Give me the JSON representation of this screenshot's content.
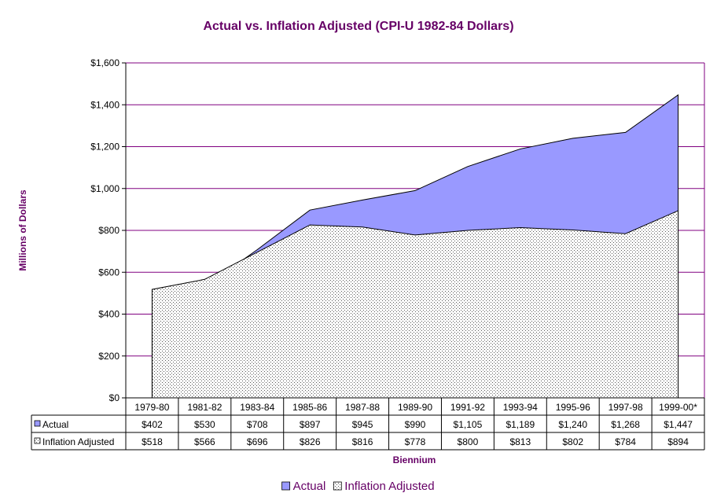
{
  "chart_data": {
    "type": "area",
    "title": "Actual vs. Inflation Adjusted (CPI-U 1982-84 Dollars)",
    "xlabel": "Biennium",
    "ylabel": "Millions of Dollars",
    "ylim": [
      0,
      1600
    ],
    "y_ticks": [
      "$0",
      "$200",
      "$400",
      "$600",
      "$800",
      "$1,000",
      "$1,200",
      "$1,400",
      "$1,600"
    ],
    "categories": [
      "1979-80",
      "1981-82",
      "1983-84",
      "1985-86",
      "1987-88",
      "1989-90",
      "1991-92",
      "1993-94",
      "1995-96",
      "1997-98",
      "1999-00*"
    ],
    "series": [
      {
        "name": "Actual",
        "values": [
          402,
          530,
          708,
          897,
          945,
          990,
          1105,
          1189,
          1240,
          1268,
          1447
        ],
        "labels": [
          "$402",
          "$530",
          "$708",
          "$897",
          "$945",
          "$990",
          "$1,105",
          "$1,189",
          "$1,240",
          "$1,268",
          "$1,447"
        ],
        "color": "#9999ff"
      },
      {
        "name": "Inflation Adjusted",
        "values": [
          518,
          566,
          696,
          826,
          816,
          778,
          800,
          813,
          802,
          784,
          894
        ],
        "labels": [
          "$518",
          "$566",
          "$696",
          "$826",
          "$816",
          "$778",
          "$800",
          "$813",
          "$802",
          "$784",
          "$894"
        ],
        "color": "#ffffff"
      }
    ],
    "grid": true,
    "data_table": true,
    "legend_position": "bottom",
    "colors": {
      "text": "#660066",
      "grid": "#800080",
      "actual": "#9999ff"
    }
  }
}
